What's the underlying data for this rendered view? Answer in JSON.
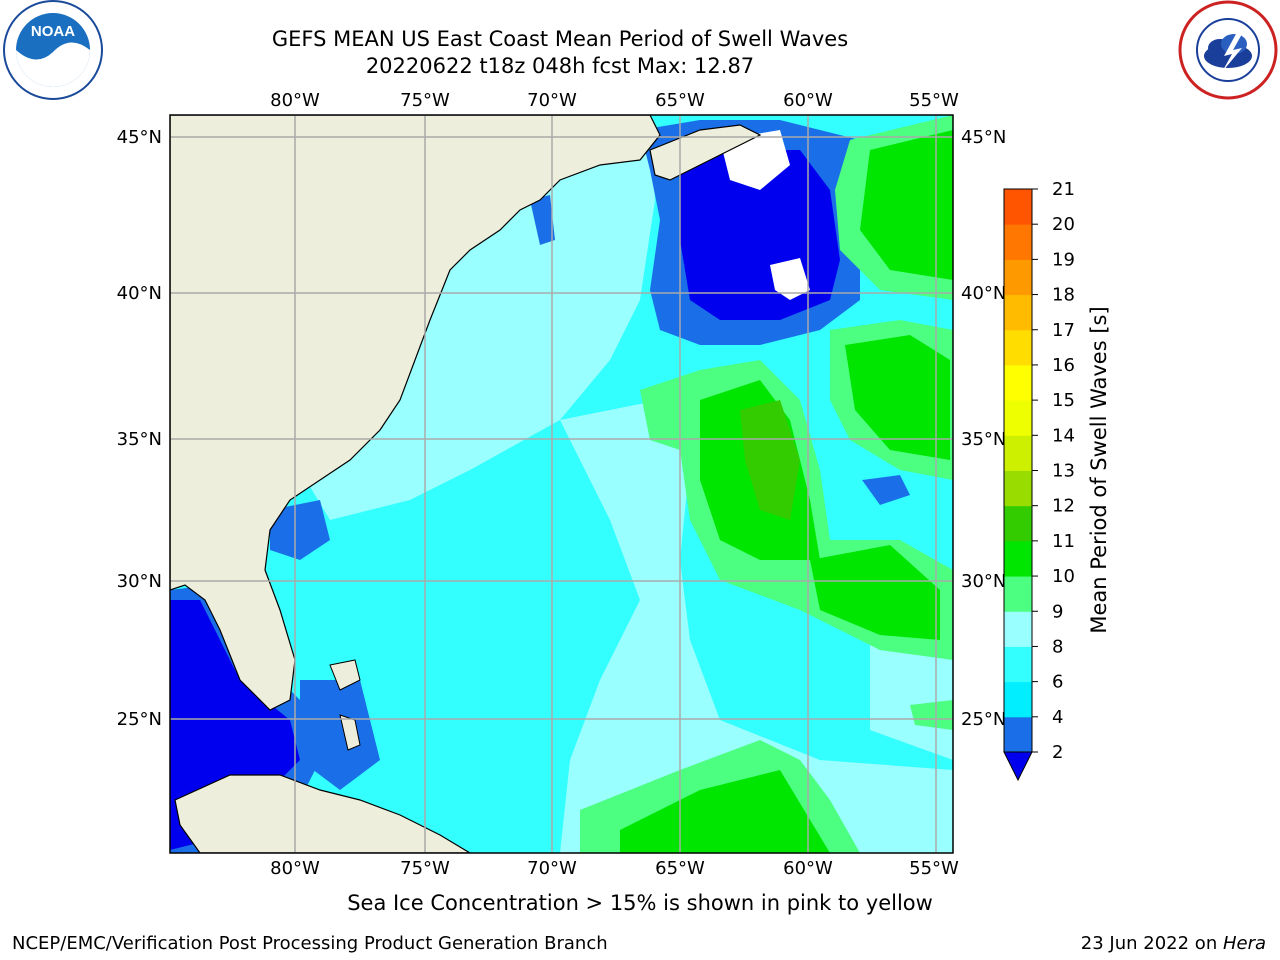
{
  "title": {
    "line1": "GEFS MEAN US East Coast Mean Period of Swell Waves",
    "line2": "20220622 t18z 048h fcst   Max: 12.87"
  },
  "map": {
    "lon_ticks": [
      "80°W",
      "75°W",
      "70°W",
      "65°W",
      "60°W",
      "55°W"
    ],
    "lat_ticks": [
      "45°N",
      "40°N",
      "35°N",
      "30°N",
      "25°N"
    ]
  },
  "colorbar": {
    "label": "Mean Period of Swell Waves [s]",
    "ticks": [
      "2",
      "4",
      "6",
      "8",
      "9",
      "10",
      "11",
      "12",
      "13",
      "14",
      "15",
      "16",
      "17",
      "18",
      "19",
      "20",
      "21"
    ],
    "colors": [
      "#1a6fe8",
      "#00eeff",
      "#33ffff",
      "#99ffff",
      "#4dff80",
      "#00e600",
      "#33cc00",
      "#99dd00",
      "#ccf000",
      "#eeff00",
      "#ffff00",
      "#ffdd00",
      "#ffbb00",
      "#ff9900",
      "#ff7700",
      "#ff5500",
      "#ff2200"
    ],
    "extend_color": "#0000ee"
  },
  "footer": {
    "note": "Sea Ice Concentration > 15% is shown in pink to yellow",
    "credit": "NCEP/EMC/Verification Post Processing Product Generation Branch",
    "date_prefix": "23 Jun 2022 on ",
    "date_host": "Hera"
  },
  "colors": {
    "land": "#eeeedd",
    "grid": "#aaaaaa",
    "sea_base": "#33ffff"
  }
}
